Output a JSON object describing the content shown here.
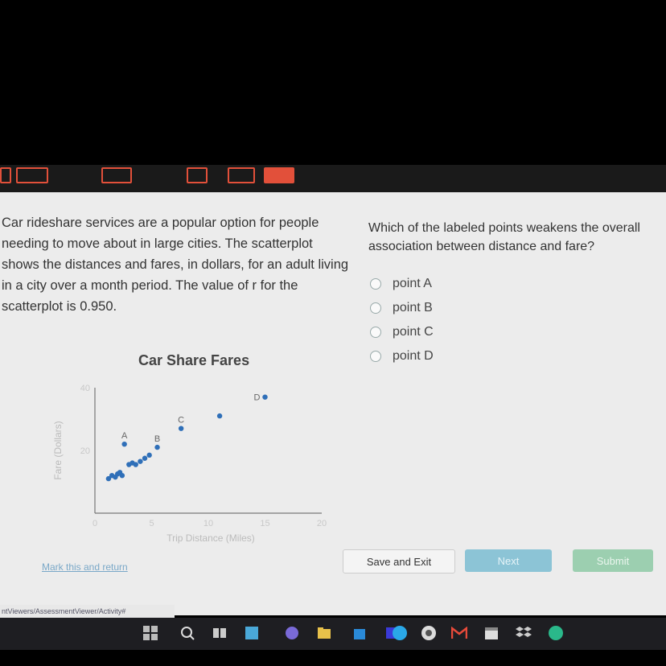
{
  "passage": "Car rideshare services are a popular option for people needing to move about in large cities. The scatterplot shows the distances and fares, in dollars, for an adult living in a city over a month period. The value of r for the scatterplot is 0.950.",
  "question": "Which of the labeled points weakens the overall association between distance and fare?",
  "options": [
    "point A",
    "point B",
    "point C",
    "point D"
  ],
  "chart_data": {
    "type": "scatter",
    "title": "Car Share Fares",
    "xlabel": "Trip Distance (Miles)",
    "ylabel": "Fare (Dollars)",
    "xlim": [
      0,
      20
    ],
    "ylim": [
      0,
      40
    ],
    "x_ticks": [
      "0",
      "5",
      "10",
      "15",
      "20"
    ],
    "y_ticks": [
      "20",
      "40"
    ],
    "points": [
      {
        "x": 1.2,
        "y": 11
      },
      {
        "x": 1.5,
        "y": 12
      },
      {
        "x": 1.8,
        "y": 11.5
      },
      {
        "x": 2.0,
        "y": 12.5
      },
      {
        "x": 2.2,
        "y": 13
      },
      {
        "x": 2.4,
        "y": 12
      },
      {
        "x": 3.0,
        "y": 15.5
      },
      {
        "x": 3.3,
        "y": 16
      },
      {
        "x": 3.6,
        "y": 15.5
      },
      {
        "x": 4.0,
        "y": 16.5
      },
      {
        "x": 4.4,
        "y": 17.5
      },
      {
        "x": 4.8,
        "y": 18.5
      },
      {
        "x": 2.6,
        "y": 22,
        "label": "A"
      },
      {
        "x": 5.5,
        "y": 21,
        "label": "B"
      },
      {
        "x": 7.6,
        "y": 27,
        "label": "C"
      },
      {
        "x": 11.0,
        "y": 31
      },
      {
        "x": 15.0,
        "y": 37,
        "label": "D"
      }
    ],
    "grid": false
  },
  "mark_link": "Mark this and return",
  "buttons": {
    "save": "Save and Exit",
    "next": "Next",
    "submit": "Submit"
  },
  "url_fragment": "ntViewers/AssessmentViewer/Activity#"
}
